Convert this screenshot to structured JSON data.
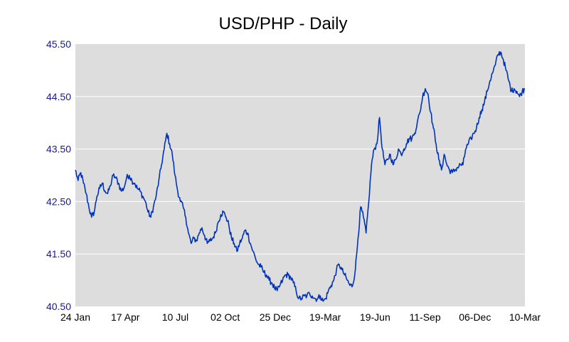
{
  "chart_data": {
    "type": "line",
    "title": "USD/PHP - Daily",
    "xlabel": "",
    "ylabel": "",
    "ylim": [
      40.5,
      45.5
    ],
    "yticks": [
      "40.50",
      "41.50",
      "42.50",
      "43.50",
      "44.50",
      "45.50"
    ],
    "xticks": [
      "24 Jan",
      "17 Apr",
      "10 Jul",
      "02 Oct",
      "25 Dec",
      "19-Mar",
      "19-Jun",
      "11-Sep",
      "06-Dec",
      "10-Mar"
    ],
    "grid": true,
    "legend": "none",
    "colors": {
      "line": "#0033bb",
      "plot_bg": "#dddddd",
      "grid": "#ffffff",
      "ytick_text": "#1a1a8c",
      "xtick_text": "#000000"
    },
    "series": [
      {
        "values": [
          43.1,
          42.9,
          43.05,
          42.85,
          42.65,
          42.4,
          42.2,
          42.3,
          42.6,
          42.75,
          42.85,
          42.7,
          42.65,
          42.8,
          43.0,
          42.95,
          42.85,
          42.7,
          42.75,
          42.95,
          43.0,
          42.9,
          42.85,
          42.75,
          42.7,
          42.6,
          42.5,
          42.3,
          42.2,
          42.4,
          42.6,
          42.9,
          43.2,
          43.5,
          43.8,
          43.6,
          43.4,
          43.0,
          42.7,
          42.5,
          42.4,
          42.2,
          41.9,
          41.7,
          41.8,
          41.75,
          41.9,
          42.0,
          41.85,
          41.7,
          41.75,
          41.8,
          41.9,
          42.1,
          42.25,
          42.3,
          42.2,
          42.05,
          41.8,
          41.7,
          41.55,
          41.7,
          41.8,
          41.95,
          41.9,
          41.7,
          41.55,
          41.4,
          41.3,
          41.25,
          41.15,
          41.1,
          41.0,
          40.95,
          40.85,
          40.8,
          40.9,
          41.0,
          41.1,
          41.1,
          41.05,
          40.95,
          40.8,
          40.65,
          40.65,
          40.7,
          40.7,
          40.75,
          40.7,
          40.65,
          40.65,
          40.7,
          40.6,
          40.65,
          40.8,
          40.9,
          41.0,
          41.2,
          41.3,
          41.2,
          41.1,
          41.0,
          40.9,
          40.9,
          41.2,
          41.8,
          42.4,
          42.2,
          41.9,
          42.5,
          43.2,
          43.5,
          43.6,
          44.1,
          43.5,
          43.2,
          43.3,
          43.4,
          43.2,
          43.3,
          43.5,
          43.4,
          43.5,
          43.6,
          43.7,
          43.7,
          43.8,
          44.0,
          44.2,
          44.5,
          44.65,
          44.55,
          44.2,
          43.9,
          43.6,
          43.3,
          43.1,
          43.4,
          43.2,
          43.1,
          43.05,
          43.1,
          43.15,
          43.2,
          43.2,
          43.5,
          43.6,
          43.7,
          43.8,
          43.9,
          44.1,
          44.25,
          44.4,
          44.6,
          44.8,
          44.95,
          45.1,
          45.3,
          45.35,
          45.2,
          45.0,
          44.8,
          44.6,
          44.65,
          44.6,
          44.5,
          44.6,
          44.65
        ]
      }
    ]
  }
}
